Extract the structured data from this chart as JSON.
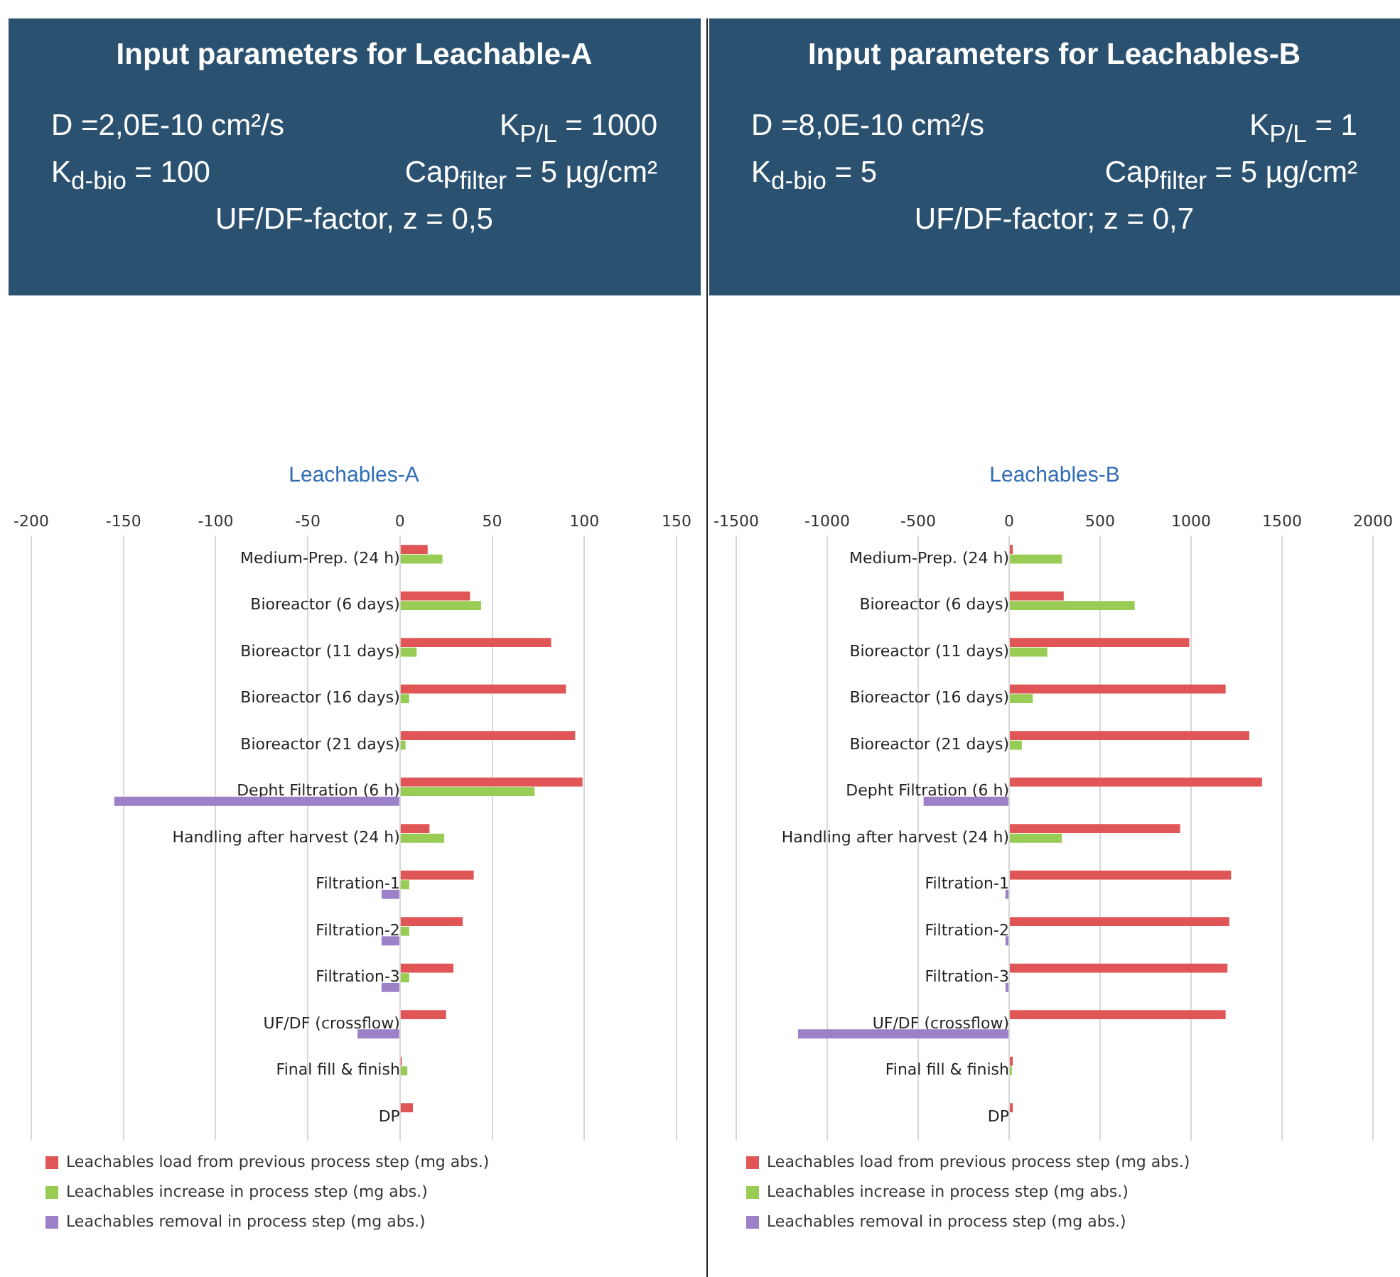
{
  "chart_data": [
    {
      "type": "bar",
      "orientation": "horizontal",
      "subtitle": "Input parameters for Leachable-A",
      "annotations": [
        "D =2,0E-10 cm²/s",
        "K$_{P/L}$ = 1000",
        "K$_{d-bio}$ = 100",
        "Cap$_{filter}$ = 5 µg/cm²",
        "UF/DF-factor, z = 0,5"
      ],
      "title": "Leachables-A",
      "categories": [
        "Medium-Prep. (24 h)",
        "Bioreactor (6 days)",
        "Bioreactor (11 days)",
        "Bioreactor (16 days)",
        "Bioreactor (21 days)",
        "Depht Filtration (6 h)",
        "Handling after harvest (24 h)",
        "Filtration-1",
        "Filtration-2",
        "Filtration-3",
        "UF/DF (crossflow)",
        "Final fill & finish",
        "DP"
      ],
      "series": [
        {
          "name": "Leachables load from previous process step (mg abs.)",
          "color": "#e05555",
          "values": [
            15,
            38,
            82,
            90,
            95,
            99,
            16,
            40,
            34,
            29,
            25,
            1,
            7
          ]
        },
        {
          "name": "Leachables increase in process step (mg abs.)",
          "color": "#98cc55",
          "values": [
            23,
            44,
            9,
            5,
            3,
            73,
            24,
            5,
            5,
            5,
            null,
            4,
            null
          ]
        },
        {
          "name": "Leachables removal in process step (mg abs.)",
          "color": "#9c80c8",
          "values": [
            null,
            null,
            null,
            null,
            null,
            -155,
            null,
            -10,
            -10,
            -10,
            -23,
            null,
            null
          ]
        }
      ],
      "xlim": [
        -200,
        150
      ],
      "xticks": [
        -200,
        -150,
        -100,
        -50,
        0,
        50,
        100,
        150
      ],
      "grid": "x",
      "legend": "bottom"
    },
    {
      "type": "bar",
      "orientation": "horizontal",
      "subtitle": "Input parameters for Leachables-B",
      "annotations": [
        "D =8,0E-10 cm²/s",
        "K$_{P/L}$ = 1",
        "K$_{d-bio}$ = 5",
        "Cap$_{filter}$ = 5 µg/cm²",
        "UF/DF-factor; z = 0,7"
      ],
      "title": "Leachables-B",
      "categories": [
        "Medium-Prep. (24 h)",
        "Bioreactor (6 days)",
        "Bioreactor (11 days)",
        "Bioreactor (16 days)",
        "Bioreactor (21 days)",
        "Depht Filtration (6 h)",
        "Handling after harvest (24 h)",
        "Filtration-1",
        "Filtration-2",
        "Filtration-3",
        "UF/DF (crossflow)",
        "Final fill & finish",
        "DP"
      ],
      "series": [
        {
          "name": "Leachables load from previous process step (mg abs.)",
          "color": "#e05555",
          "values": [
            20,
            300,
            990,
            1190,
            1320,
            1390,
            940,
            1220,
            1210,
            1200,
            1190,
            20,
            20
          ]
        },
        {
          "name": "Leachables increase in process step (mg abs.)",
          "color": "#98cc55",
          "values": [
            290,
            690,
            210,
            130,
            70,
            null,
            290,
            null,
            null,
            null,
            null,
            15,
            null
          ]
        },
        {
          "name": "Leachables removal in process step (mg abs.)",
          "color": "#9c80c8",
          "values": [
            null,
            null,
            null,
            null,
            null,
            -470,
            null,
            -20,
            -20,
            -20,
            -1160,
            null,
            null
          ]
        }
      ],
      "xlim": [
        -1500,
        2000
      ],
      "xticks": [
        -1500,
        -1000,
        -500,
        0,
        500,
        1000,
        1500,
        2000
      ],
      "grid": "x",
      "legend": "bottom"
    }
  ]
}
